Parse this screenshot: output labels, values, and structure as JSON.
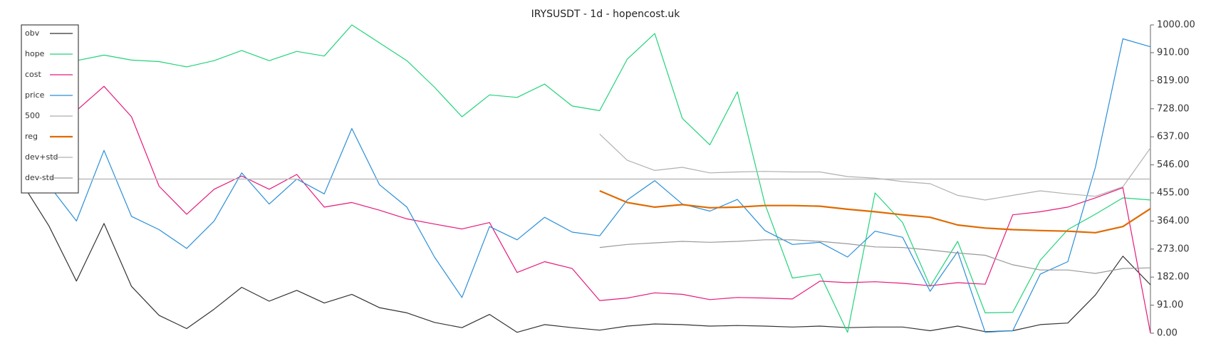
{
  "chart_data": {
    "type": "line",
    "title": "IRYSUSDT - 1d - hopencost.uk",
    "ylim": [
      0,
      1000
    ],
    "yticks": [
      {
        "value": 0,
        "label": "0.00"
      },
      {
        "value": 91,
        "label": "91.00"
      },
      {
        "value": 182,
        "label": "182.00"
      },
      {
        "value": 273,
        "label": "273.00"
      },
      {
        "value": 364,
        "label": "364.00"
      },
      {
        "value": 455,
        "label": "455.00"
      },
      {
        "value": 546,
        "label": "546.00"
      },
      {
        "value": 637,
        "label": "637.00"
      },
      {
        "value": 728,
        "label": "728.00"
      },
      {
        "value": 819,
        "label": "819.00"
      },
      {
        "value": 910,
        "label": "910.00"
      },
      {
        "value": 1000,
        "label": "1000.00"
      }
    ],
    "y_axis_side": "right",
    "legend": "upper left",
    "series": [
      {
        "name": "obv",
        "color": "#333333",
        "width": 1.2,
        "values": [
          490,
          348,
          169,
          356,
          152,
          58,
          15,
          78,
          149,
          104,
          139,
          98,
          126,
          83,
          66,
          35,
          18,
          61,
          3,
          28,
          18,
          10,
          23,
          30,
          28,
          23,
          25,
          23,
          20,
          23,
          18,
          20,
          20,
          8,
          23,
          5,
          8,
          28,
          33,
          124,
          250,
          157
        ]
      },
      {
        "name": "hope",
        "color": "#22d37a",
        "width": 1.2,
        "values": [
          880,
          880,
          884,
          902,
          886,
          881,
          864,
          884,
          917,
          884,
          914,
          899,
          1000,
          942,
          884,
          798,
          702,
          773,
          765,
          808,
          737,
          722,
          889,
          972,
          697,
          611,
          783,
          419,
          179,
          192,
          3,
          455,
          359,
          152,
          298,
          66,
          68,
          237,
          336,
          386,
          439,
          432
        ]
      },
      {
        "name": "cost",
        "color": "#e6197d",
        "width": 1.2,
        "values": [
          700,
          710,
          722,
          801,
          702,
          477,
          386,
          467,
          510,
          467,
          515,
          409,
          424,
          399,
          371,
          354,
          338,
          359,
          197,
          232,
          210,
          106,
          114,
          131,
          126,
          109,
          116,
          114,
          111,
          169,
          164,
          167,
          162,
          154,
          164,
          159,
          384,
          394,
          409,
          439,
          472,
          0
        ]
      },
      {
        "name": "price",
        "color": "#2a8fd8",
        "width": 1.2,
        "values": [
          510,
          480,
          364,
          593,
          379,
          336,
          275,
          364,
          520,
          419,
          500,
          452,
          664,
          482,
          409,
          247,
          116,
          346,
          303,
          376,
          328,
          316,
          432,
          495,
          419,
          396,
          434,
          333,
          288,
          295,
          247,
          331,
          311,
          136,
          265,
          3,
          8,
          192,
          232,
          538,
          955,
          929
        ]
      },
      {
        "name": "500",
        "color": "#bbbbbb",
        "width": 1.5,
        "values": [
          500,
          500,
          500,
          500,
          500,
          500,
          500,
          500,
          500,
          500,
          500,
          500,
          500,
          500,
          500,
          500,
          500,
          500,
          500,
          500,
          500,
          500,
          500,
          500,
          500,
          500,
          500,
          500,
          500,
          500,
          500,
          500,
          500,
          500,
          500,
          500,
          500,
          500,
          500,
          500,
          500,
          500
        ]
      },
      {
        "name": "reg",
        "color": "#e06a00",
        "width": 2.2,
        "values": [
          null,
          null,
          null,
          null,
          null,
          null,
          null,
          null,
          null,
          null,
          null,
          null,
          null,
          null,
          null,
          null,
          null,
          null,
          null,
          null,
          null,
          462,
          424,
          409,
          417,
          407,
          409,
          414,
          414,
          412,
          402,
          394,
          384,
          376,
          351,
          341,
          336,
          333,
          331,
          326,
          346,
          404
        ]
      },
      {
        "name": "dev+std",
        "color": "#b0b0b0",
        "width": 1.2,
        "values": [
          null,
          null,
          null,
          null,
          null,
          null,
          null,
          null,
          null,
          null,
          null,
          null,
          null,
          null,
          null,
          null,
          null,
          null,
          null,
          null,
          null,
          646,
          561,
          528,
          538,
          520,
          523,
          525,
          523,
          523,
          508,
          503,
          492,
          485,
          447,
          432,
          447,
          462,
          452,
          444,
          475,
          601
        ]
      },
      {
        "name": "dev-std",
        "color": "#999999",
        "width": 1.2,
        "values": [
          null,
          null,
          null,
          null,
          null,
          null,
          null,
          null,
          null,
          null,
          null,
          null,
          null,
          null,
          null,
          null,
          null,
          null,
          null,
          null,
          null,
          278,
          288,
          293,
          298,
          295,
          298,
          303,
          303,
          298,
          290,
          280,
          278,
          270,
          260,
          253,
          222,
          205,
          205,
          194,
          210,
          212
        ]
      }
    ]
  }
}
